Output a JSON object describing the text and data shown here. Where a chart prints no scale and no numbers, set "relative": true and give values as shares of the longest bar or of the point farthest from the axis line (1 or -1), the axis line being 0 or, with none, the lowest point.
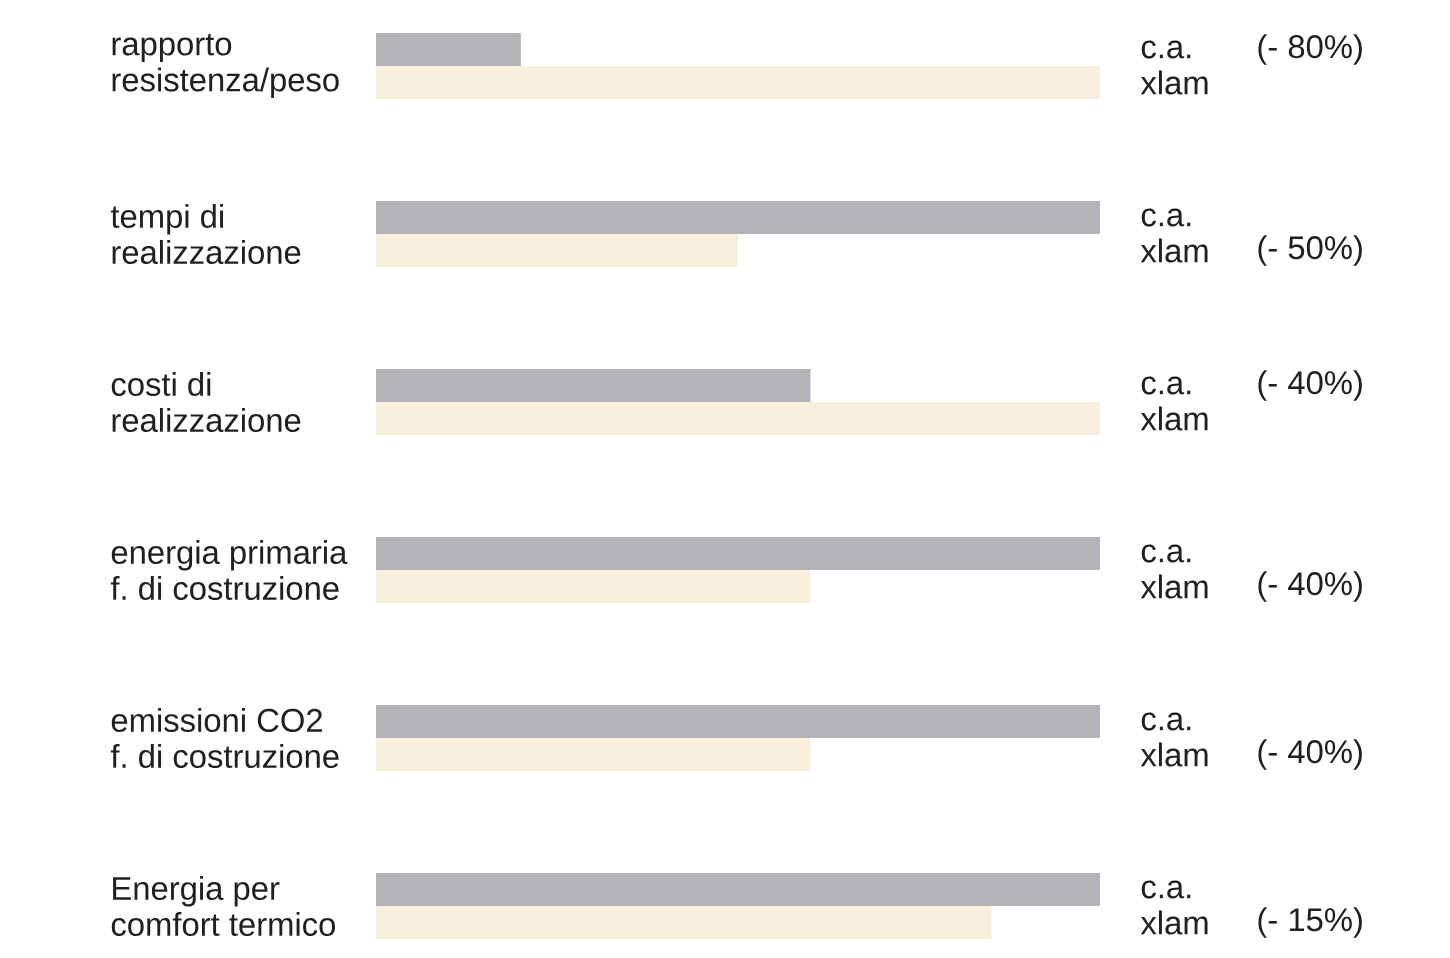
{
  "chart_data": {
    "type": "bar",
    "orientation": "horizontal",
    "relative": true,
    "categories": [
      "rapporto resistenza/peso",
      "tempi di realizzazione",
      "costi di realizzazione",
      "energia primaria f. di costruzione",
      "emissioni CO2 f. di costruzione",
      "Energia per comfort termico"
    ],
    "series": [
      {
        "name": "c.a.",
        "color": "#b2b3b7",
        "values": [
          0.2,
          1,
          0.6,
          1,
          1,
          1
        ]
      },
      {
        "name": "xlam",
        "color": "#f7eedb",
        "values": [
          1,
          0.5,
          1,
          0.6,
          0.6,
          0.85
        ]
      }
    ],
    "annotations": [
      "(- 80%)",
      "(- 50%)",
      "(- 40%)",
      "(- 40%)",
      "(- 40%)",
      "(- 15%)"
    ]
  }
}
